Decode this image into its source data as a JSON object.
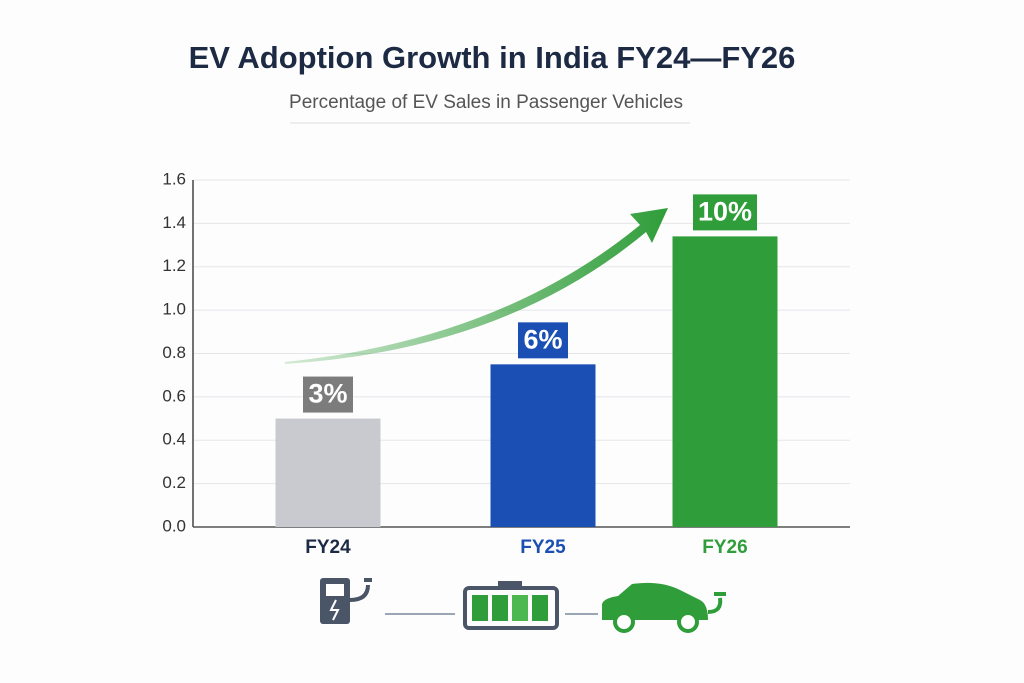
{
  "chart_data": {
    "type": "bar",
    "title": "EV Adoption Growth in India FY24—FY26",
    "subtitle": "Percentage of EV Sales in Passenger Vehicles",
    "categories": [
      "FY24",
      "FY25",
      "FY26"
    ],
    "values": [
      0.5,
      0.75,
      1.34
    ],
    "colors": [
      "#c8cacf",
      "#1b4fb3",
      "#2f9d39"
    ],
    "category_colors": [
      "#1d2a44",
      "#1b4fb3",
      "#2f9d39"
    ],
    "annotations": [
      "3%",
      "6%",
      "10%"
    ],
    "annotation_colors": [
      "#7c7c7c",
      "#1b4fb3",
      "#2f9d39"
    ],
    "ylim": [
      0,
      1.6
    ],
    "yticks": [
      {
        "value": 0,
        "label": "0.0"
      },
      0.2,
      0.4,
      0.6,
      0.8,
      {
        "value": 1,
        "label": "1.0"
      },
      1.2,
      1.4,
      1.6
    ],
    "grid": true
  }
}
